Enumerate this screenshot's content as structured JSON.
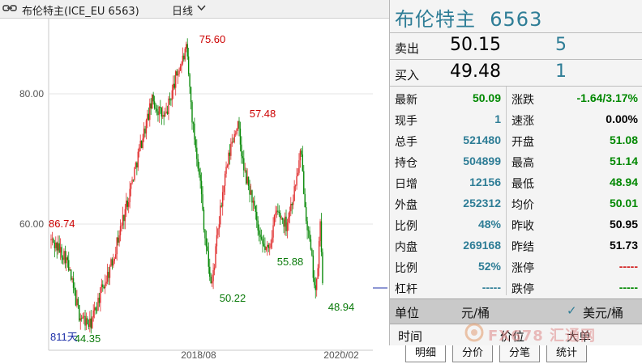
{
  "topbar": {
    "title": "布伦特主(ICE_EU 6563)",
    "period": "日线"
  },
  "panel": {
    "header": "布伦特主  6563",
    "sell_label": "卖出",
    "sell_price": "50.15",
    "sell_vol": "5",
    "buy_label": "买入",
    "buy_price": "49.48",
    "buy_vol": "1",
    "rows": [
      {
        "k1": "最新",
        "v1": "50.09",
        "c1": "green",
        "k2": "涨跌",
        "v2": "-1.64/3.17%",
        "c2": "green"
      },
      {
        "k1": "现手",
        "v1": "1",
        "c1": "teal",
        "k2": "速涨",
        "v2": "0.00%",
        "c2": "black"
      },
      {
        "k1": "总手",
        "v1": "521480",
        "c1": "teal",
        "k2": "开盘",
        "v2": "51.08",
        "c2": "green"
      },
      {
        "k1": "持仓",
        "v1": "504899",
        "c1": "teal",
        "k2": "最高",
        "v2": "51.14",
        "c2": "green"
      },
      {
        "k1": "日增",
        "v1": "12156",
        "c1": "teal",
        "k2": "最低",
        "v2": "48.94",
        "c2": "green"
      },
      {
        "k1": "外盘",
        "v1": "252312",
        "c1": "teal",
        "k2": "均价",
        "v2": "50.01",
        "c2": "green"
      },
      {
        "k1": "比例",
        "v1": "48%",
        "c1": "teal",
        "k2": "昨收",
        "v2": "50.95",
        "c2": "black"
      },
      {
        "k1": "内盘",
        "v1": "269168",
        "c1": "teal",
        "k2": "昨结",
        "v2": "51.73",
        "c2": "black"
      },
      {
        "k1": "比例",
        "v1": "52%",
        "c1": "teal",
        "k2": "涨停",
        "v2": "-----",
        "c2": "red"
      },
      {
        "k1": "杠杆",
        "v1": "-----",
        "c1": "teal",
        "k2": "跌停",
        "v2": "-----",
        "c2": "green"
      }
    ],
    "unit_label": "单位",
    "unit_value": "元/桶",
    "unit_check": "✓",
    "unit_alt": "美元/桶",
    "ticker_cols": [
      "时间",
      "价位",
      "大单"
    ],
    "watermark": "FX678 汇通网",
    "tabs": [
      "明细",
      "分价",
      "分笔",
      "统计"
    ]
  },
  "chart_data": {
    "type": "candlestick",
    "yticks": [
      "80.00",
      "60.00"
    ],
    "xticks": [
      "2018/08",
      "2020/02"
    ],
    "annotations": [
      "86.74",
      "75.60",
      "57.48",
      "50.22",
      "55.88",
      "48.94",
      "44.35"
    ],
    "period_count": "811天",
    "path": [
      [
        0,
        57.5
      ],
      [
        18,
        55
      ],
      [
        35,
        46
      ],
      [
        48,
        44.4
      ],
      [
        60,
        49
      ],
      [
        75,
        54
      ],
      [
        95,
        64
      ],
      [
        110,
        72
      ],
      [
        125,
        79
      ],
      [
        140,
        76
      ],
      [
        155,
        83
      ],
      [
        167,
        86.7
      ],
      [
        175,
        75
      ],
      [
        183,
        68
      ],
      [
        190,
        58
      ],
      [
        198,
        50.2
      ],
      [
        205,
        58
      ],
      [
        213,
        66
      ],
      [
        222,
        72
      ],
      [
        230,
        75.6
      ],
      [
        238,
        68
      ],
      [
        248,
        64
      ],
      [
        258,
        57
      ],
      [
        268,
        55.9
      ],
      [
        278,
        62
      ],
      [
        290,
        60
      ],
      [
        300,
        65
      ],
      [
        308,
        71
      ],
      [
        315,
        61
      ],
      [
        322,
        54
      ],
      [
        327,
        49
      ],
      [
        332,
        60
      ],
      [
        336,
        48.9
      ]
    ]
  }
}
